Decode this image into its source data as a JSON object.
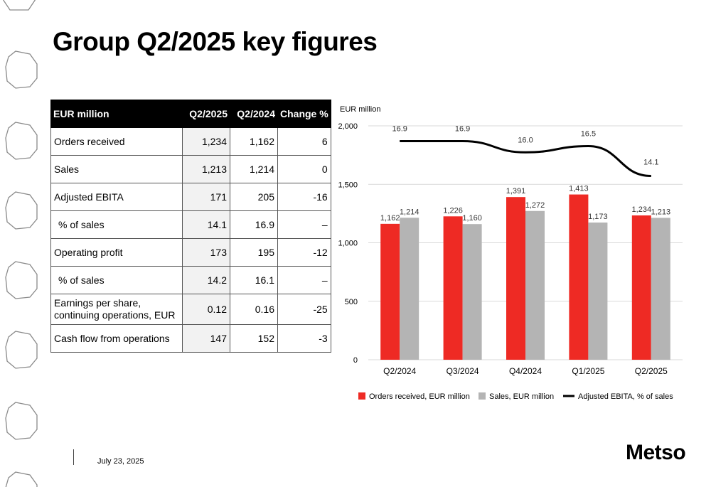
{
  "slide": {
    "title": "Group Q2/2025 key figures",
    "footer_date": "July 23, 2025",
    "logo": "Metso"
  },
  "table": {
    "headers": [
      "EUR million",
      "Q2/2025",
      "Q2/2024",
      "Change %"
    ],
    "rows": [
      [
        "Orders received",
        "1,234",
        "1,162",
        "6"
      ],
      [
        "Sales",
        "1,213",
        "1,214",
        "0"
      ],
      [
        "Adjusted EBITA",
        "171",
        "205",
        "-16"
      ],
      [
        "% of sales",
        "14.1",
        "16.9",
        "–"
      ],
      [
        "Operating profit",
        "173",
        "195",
        "-12"
      ],
      [
        "% of sales",
        "14.2",
        "16.1",
        "–"
      ],
      [
        "Earnings per share, continuing operations, EUR",
        "0.12",
        "0.16",
        "-25"
      ],
      [
        "Cash flow from operations",
        "147",
        "152",
        "-3"
      ]
    ]
  },
  "chart_data": {
    "type": "bar",
    "unit_label": "EUR million",
    "categories": [
      "Q2/2024",
      "Q3/2024",
      "Q4/2024",
      "Q1/2025",
      "Q2/2025"
    ],
    "series": [
      {
        "name": "Orders received, EUR million",
        "values": [
          1162,
          1226,
          1391,
          1413,
          1234
        ],
        "labels": [
          "1,162",
          "1,226",
          "1,391",
          "1,413",
          "1,234"
        ],
        "color": "#ee2a24"
      },
      {
        "name": "Sales, EUR million",
        "values": [
          1214,
          1160,
          1272,
          1173,
          1213
        ],
        "labels": [
          "1,214",
          "1,160",
          "1,272",
          "1,173",
          "1,213"
        ],
        "color": "#b4b4b4"
      }
    ],
    "line_series": {
      "name": "Adjusted EBITA, % of sales",
      "values": [
        16.9,
        16.9,
        16.0,
        16.5,
        14.1
      ],
      "labels": [
        "16.9",
        "16.9",
        "16.0",
        "16.5",
        "14.1"
      ],
      "color": "#000000"
    },
    "yticks": [
      "0",
      "500",
      "1,000",
      "1,500",
      "2,000"
    ],
    "ylim": [
      0,
      2000
    ],
    "grid": true,
    "legend_position": "bottom"
  }
}
